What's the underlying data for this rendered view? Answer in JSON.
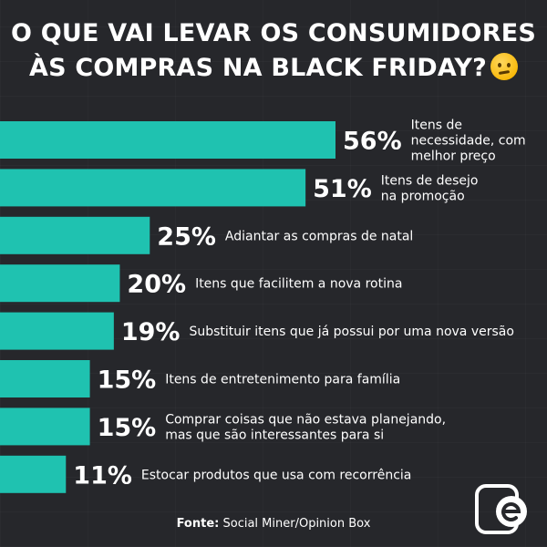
{
  "title": {
    "line1": "O QUE VAI LEVAR OS CONSUMIDORES",
    "line2": "ÀS COMPRAS NA BLACK FRIDAY?",
    "emoji_icon": "thinking-face-icon"
  },
  "source": {
    "label": "Fonte:",
    "text": "Social Miner/Opinion Box"
  },
  "logo_icon": "e-logo-icon",
  "colors": {
    "background": "#26272b",
    "bar": "#1fc2b0",
    "text": "#ffffff"
  },
  "chart_data": {
    "type": "bar",
    "orientation": "horizontal",
    "unit": "%",
    "categories": [
      [
        "Itens de",
        "necessidade, com",
        "melhor preço"
      ],
      [
        "Itens de desejo",
        "na promoção"
      ],
      [
        "Adiantar as compras de natal"
      ],
      [
        "Itens que facilitem a nova rotina"
      ],
      [
        "Substituir itens que já possui por uma nova versão"
      ],
      [
        "Itens de entretenimento para família"
      ],
      [
        "Comprar coisas que não estava planejando,",
        "mas que são interessantes para si"
      ],
      [
        "Estocar produtos que usa com recorrência"
      ]
    ],
    "values": [
      56,
      51,
      25,
      20,
      19,
      15,
      15,
      11
    ],
    "value_labels": [
      "56%",
      "51%",
      "25%",
      "20%",
      "19%",
      "15%",
      "15%",
      "11%"
    ],
    "xlim": [
      0,
      100
    ],
    "grid": false,
    "legend": false
  }
}
